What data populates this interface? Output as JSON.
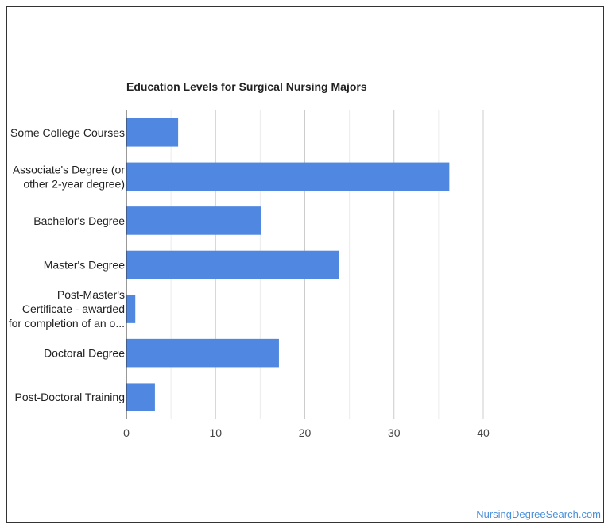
{
  "chart_data": {
    "type": "bar",
    "orientation": "horizontal",
    "title": "Education Levels for Surgical Nursing Majors",
    "categories": [
      [
        "Some College Courses"
      ],
      [
        "Associate's Degree (or",
        "other 2-year degree)"
      ],
      [
        "Bachelor's Degree"
      ],
      [
        "Master's Degree"
      ],
      [
        "Post-Master's",
        "Certificate - awarded",
        "for completion of an o..."
      ],
      [
        "Doctoral Degree"
      ],
      [
        "Post-Doctoral Training"
      ]
    ],
    "values": [
      5.8,
      36.2,
      15.1,
      23.8,
      1.0,
      17.1,
      3.2
    ],
    "xlim": [
      0,
      40
    ],
    "xticks": [
      0,
      10,
      20,
      30,
      40
    ],
    "xtick_labels": [
      "0",
      "10",
      "20",
      "30",
      "40"
    ],
    "grid": true,
    "colors": {
      "bar": "#5087e0",
      "grid": "#cccccc",
      "axis": "#333333"
    }
  },
  "footer": {
    "source": "NursingDegreeSearch.com"
  }
}
